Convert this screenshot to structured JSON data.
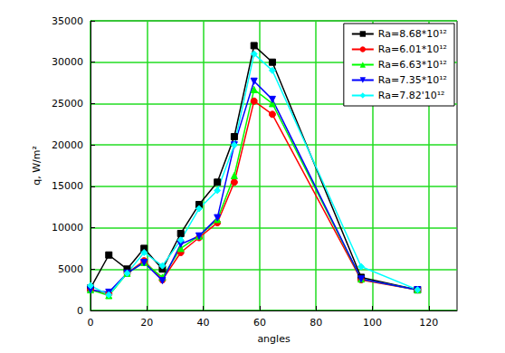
{
  "chart_data": {
    "type": "line",
    "x_label": "angles",
    "y_label": "q, W/m²",
    "x": [
      0,
      6.5,
      13,
      19,
      25.5,
      32,
      38.5,
      45,
      51,
      58,
      64.5,
      96,
      116
    ],
    "series": [
      {
        "name": "Ra=8.68*10¹²",
        "color": "#000000",
        "marker": "square",
        "values": [
          2700,
          6700,
          5000,
          7500,
          5000,
          9300,
          12800,
          15500,
          21000,
          32000,
          30000,
          4000,
          2500
        ]
      },
      {
        "name": "Ra=6.01*10¹²",
        "color": "#ff0000",
        "marker": "circle",
        "values": [
          2500,
          2000,
          4500,
          6000,
          3700,
          7000,
          8800,
          10600,
          15500,
          25300,
          23700,
          3700,
          2500
        ]
      },
      {
        "name": "Ra=6.63*10¹²",
        "color": "#00ff00",
        "marker": "triangle",
        "values": [
          2500,
          1800,
          4500,
          5800,
          4000,
          7500,
          9000,
          11000,
          16300,
          26700,
          25000,
          3800,
          2500
        ]
      },
      {
        "name": "Ra=7.35*10¹²",
        "color": "#0000ff",
        "marker": "triangle-down",
        "values": [
          2500,
          2200,
          4500,
          5800,
          3600,
          8000,
          9000,
          11200,
          20000,
          27700,
          25500,
          3800,
          2500
        ]
      },
      {
        "name": "Ra=7.82'10¹²",
        "color": "#00ffff",
        "marker": "diamond",
        "values": [
          3000,
          1900,
          4500,
          7000,
          5400,
          8500,
          12300,
          14500,
          20000,
          31000,
          29000,
          5300,
          2500
        ]
      }
    ],
    "xlim": [
      0,
      130
    ],
    "xticks": [
      0,
      20,
      40,
      60,
      80,
      100,
      120
    ],
    "ylim": [
      0,
      35000
    ],
    "yticks": [
      0,
      5000,
      10000,
      15000,
      20000,
      25000,
      30000,
      35000
    ],
    "grid": true,
    "legend": "top-right"
  }
}
